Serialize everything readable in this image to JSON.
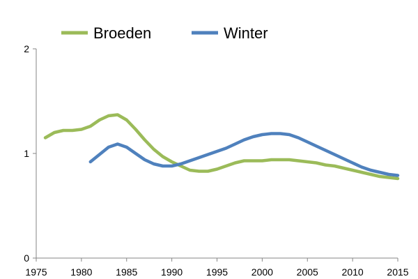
{
  "chart_data": {
    "type": "line",
    "title": "",
    "xlabel": "",
    "ylabel": "",
    "xlim": [
      1975,
      2015
    ],
    "ylim": [
      0,
      2
    ],
    "x_ticks": [
      "1975",
      "1980",
      "1985",
      "1990",
      "1995",
      "2000",
      "2005",
      "2010",
      "2015"
    ],
    "y_ticks": [
      "0",
      "1",
      "2"
    ],
    "grid": false,
    "legend_position": "top",
    "series": [
      {
        "name": "Broeden",
        "color": "#9bbb59",
        "x": [
          1976,
          1977,
          1978,
          1979,
          1980,
          1981,
          1982,
          1983,
          1984,
          1985,
          1986,
          1987,
          1988,
          1989,
          1990,
          1991,
          1992,
          1993,
          1994,
          1995,
          1996,
          1997,
          1998,
          1999,
          2000,
          2001,
          2002,
          2003,
          2004,
          2005,
          2006,
          2007,
          2008,
          2009,
          2010,
          2011,
          2012,
          2013,
          2014,
          2015
        ],
        "y": [
          1.15,
          1.2,
          1.22,
          1.22,
          1.23,
          1.26,
          1.32,
          1.36,
          1.37,
          1.32,
          1.23,
          1.13,
          1.04,
          0.97,
          0.92,
          0.88,
          0.84,
          0.83,
          0.83,
          0.85,
          0.88,
          0.91,
          0.93,
          0.93,
          0.93,
          0.94,
          0.94,
          0.94,
          0.93,
          0.92,
          0.91,
          0.89,
          0.88,
          0.86,
          0.84,
          0.82,
          0.8,
          0.78,
          0.77,
          0.76
        ]
      },
      {
        "name": "Winter",
        "color": "#4f81bd",
        "x": [
          1981,
          1982,
          1983,
          1984,
          1985,
          1986,
          1987,
          1988,
          1989,
          1990,
          1991,
          1992,
          1993,
          1994,
          1995,
          1996,
          1997,
          1998,
          1999,
          2000,
          2001,
          2002,
          2003,
          2004,
          2005,
          2006,
          2007,
          2008,
          2009,
          2010,
          2011,
          2012,
          2013,
          2014,
          2015
        ],
        "y": [
          0.92,
          0.99,
          1.06,
          1.09,
          1.06,
          1.0,
          0.94,
          0.9,
          0.88,
          0.88,
          0.9,
          0.93,
          0.96,
          0.99,
          1.02,
          1.05,
          1.09,
          1.13,
          1.16,
          1.18,
          1.19,
          1.19,
          1.18,
          1.15,
          1.11,
          1.07,
          1.03,
          0.99,
          0.95,
          0.91,
          0.87,
          0.84,
          0.82,
          0.8,
          0.79
        ]
      }
    ]
  }
}
